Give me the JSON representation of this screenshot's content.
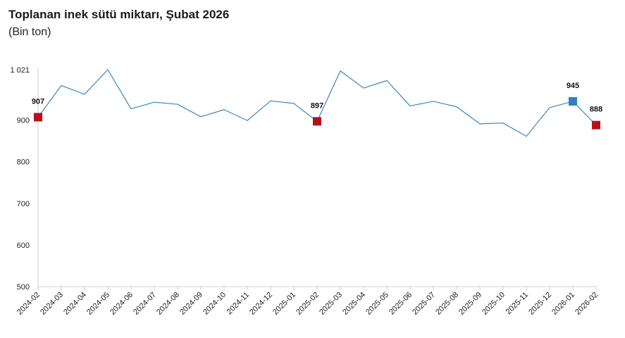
{
  "chart_data": {
    "type": "line",
    "title": "Toplanan inek sütü miktarı, Şubat 2026",
    "subtitle": "(Bin ton)",
    "xlabel": "",
    "ylabel": "",
    "categories": [
      "2024-02",
      "2024-03",
      "2024-04",
      "2024-05",
      "2024-06",
      "2024-07",
      "2024-08",
      "2024-09",
      "2024-10",
      "2024-11",
      "2024-12",
      "2025-01",
      "2025-02",
      "2025-03",
      "2025-04",
      "2025-05",
      "2025-06",
      "2025-07",
      "2025-08",
      "2025-09",
      "2025-10",
      "2025-11",
      "2025-12",
      "2026-01",
      "2026-02"
    ],
    "series": [
      {
        "values": [
          907,
          983,
          962,
          1021,
          927,
          943,
          938,
          908,
          925,
          899,
          946,
          940,
          897,
          1018,
          977,
          995,
          934,
          945,
          932,
          891,
          893,
          861,
          930,
          945,
          888
        ],
        "color": "#3a86c4"
      }
    ],
    "ylim": [
      500,
      1021
    ],
    "yticks": [
      500,
      600,
      700,
      800,
      900,
      1021
    ],
    "ytick_labels": [
      "500",
      "600",
      "700",
      "800",
      "900",
      "1 021"
    ],
    "grid": false,
    "highlights": [
      {
        "index": 0,
        "label": "907",
        "color": "#b5121b"
      },
      {
        "index": 12,
        "label": "897",
        "color": "#b5121b"
      },
      {
        "index": 23,
        "label": "945",
        "color": "#2f7fbf"
      },
      {
        "index": 24,
        "label": "888",
        "color": "#b5121b"
      }
    ]
  }
}
